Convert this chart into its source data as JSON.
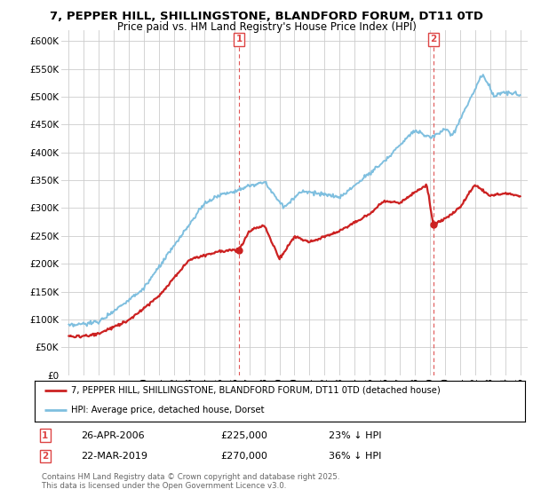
{
  "title": "7, PEPPER HILL, SHILLINGSTONE, BLANDFORD FORUM, DT11 0TD",
  "subtitle": "Price paid vs. HM Land Registry's House Price Index (HPI)",
  "ylim": [
    0,
    620000
  ],
  "yticks": [
    0,
    50000,
    100000,
    150000,
    200000,
    250000,
    300000,
    350000,
    400000,
    450000,
    500000,
    550000,
    600000
  ],
  "ytick_labels": [
    "£0",
    "£50K",
    "£100K",
    "£150K",
    "£200K",
    "£250K",
    "£300K",
    "£350K",
    "£400K",
    "£450K",
    "£500K",
    "£550K",
    "£600K"
  ],
  "hpi_color": "#7fbfdf",
  "price_color": "#cc2222",
  "marker1_date": 2006.32,
  "marker1_price": 225000,
  "marker1_label": "1",
  "marker2_date": 2019.23,
  "marker2_price": 270000,
  "marker2_label": "2",
  "legend_line1": "7, PEPPER HILL, SHILLINGSTONE, BLANDFORD FORUM, DT11 0TD (detached house)",
  "legend_line2": "HPI: Average price, detached house, Dorset",
  "annotation1_date": "26-APR-2006",
  "annotation1_price": "£225,000",
  "annotation1_hpi": "23% ↓ HPI",
  "annotation2_date": "22-MAR-2019",
  "annotation2_price": "£270,000",
  "annotation2_hpi": "36% ↓ HPI",
  "footer": "Contains HM Land Registry data © Crown copyright and database right 2025.\nThis data is licensed under the Open Government Licence v3.0.",
  "grid_color": "#cccccc",
  "vline_color": "#dd4444"
}
